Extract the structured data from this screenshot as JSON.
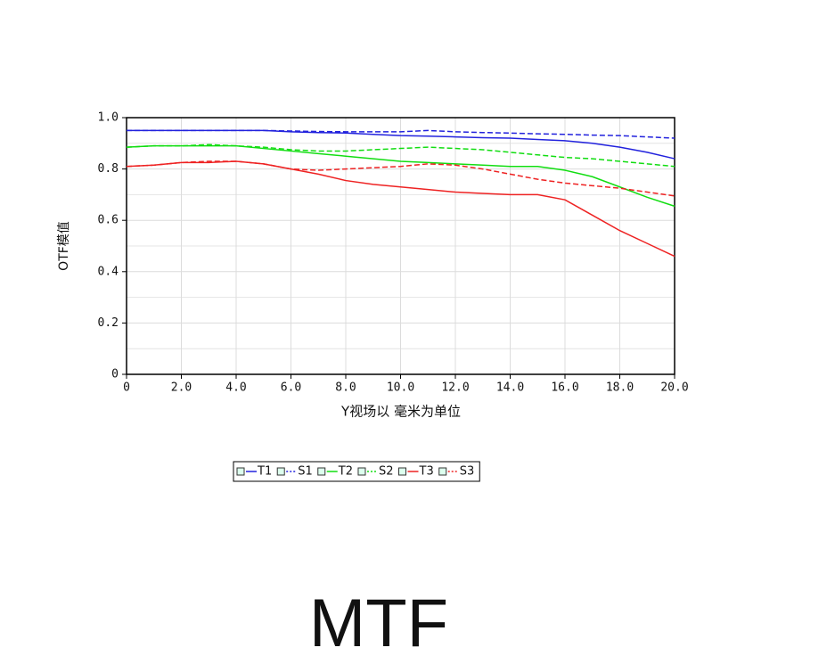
{
  "chart_data": {
    "type": "line",
    "title": "MTF",
    "x_label": "Y视场以  毫米为单位",
    "y_label": "OTF模值",
    "x": [
      0,
      1,
      2,
      3,
      4,
      5,
      6,
      7,
      8,
      9,
      10,
      11,
      12,
      13,
      14,
      15,
      16,
      17,
      18,
      19,
      20
    ],
    "series": [
      {
        "name": "T1",
        "color": "#2222dd",
        "style": "solid",
        "values": [
          0.95,
          0.95,
          0.95,
          0.95,
          0.95,
          0.95,
          0.945,
          0.942,
          0.94,
          0.935,
          0.93,
          0.928,
          0.925,
          0.922,
          0.92,
          0.915,
          0.91,
          0.9,
          0.885,
          0.865,
          0.84
        ]
      },
      {
        "name": "S1",
        "color": "#2222dd",
        "style": "dashed",
        "values": [
          0.95,
          0.95,
          0.95,
          0.95,
          0.95,
          0.95,
          0.948,
          0.946,
          0.945,
          0.945,
          0.945,
          0.95,
          0.945,
          0.942,
          0.94,
          0.937,
          0.935,
          0.932,
          0.93,
          0.925,
          0.92
        ]
      },
      {
        "name": "T2",
        "color": "#11dd11",
        "style": "solid",
        "values": [
          0.885,
          0.89,
          0.89,
          0.89,
          0.89,
          0.88,
          0.87,
          0.86,
          0.85,
          0.84,
          0.83,
          0.825,
          0.82,
          0.815,
          0.81,
          0.81,
          0.795,
          0.77,
          0.73,
          0.69,
          0.655
        ]
      },
      {
        "name": "S2",
        "color": "#11dd11",
        "style": "dashed",
        "values": [
          0.885,
          0.89,
          0.89,
          0.895,
          0.89,
          0.885,
          0.875,
          0.87,
          0.87,
          0.875,
          0.88,
          0.885,
          0.88,
          0.875,
          0.865,
          0.855,
          0.845,
          0.84,
          0.83,
          0.82,
          0.81
        ]
      },
      {
        "name": "T3",
        "color": "#ee2222",
        "style": "solid",
        "values": [
          0.81,
          0.815,
          0.825,
          0.825,
          0.83,
          0.82,
          0.8,
          0.78,
          0.755,
          0.74,
          0.73,
          0.72,
          0.71,
          0.705,
          0.7,
          0.7,
          0.68,
          0.62,
          0.56,
          0.51,
          0.46
        ]
      },
      {
        "name": "S3",
        "color": "#ee2222",
        "style": "dashed",
        "values": [
          0.81,
          0.815,
          0.825,
          0.83,
          0.83,
          0.82,
          0.8,
          0.795,
          0.8,
          0.805,
          0.81,
          0.82,
          0.815,
          0.8,
          0.78,
          0.76,
          0.745,
          0.735,
          0.725,
          0.71,
          0.695
        ]
      }
    ],
    "xlim": [
      0,
      20
    ],
    "xticks": [
      0,
      {
        "value": 2,
        "label": "2.0"
      },
      {
        "value": 4,
        "label": "4.0"
      },
      {
        "value": 6,
        "label": "6.0"
      },
      {
        "value": 8,
        "label": "8.0"
      },
      {
        "value": 10,
        "label": "10.0"
      },
      {
        "value": 12,
        "label": "12.0"
      },
      {
        "value": 14,
        "label": "14.0"
      },
      {
        "value": 16,
        "label": "16.0"
      },
      {
        "value": 18,
        "label": "18.0"
      },
      {
        "value": 20,
        "label": "20.0"
      }
    ],
    "ylim": [
      0,
      1
    ],
    "yticks": [
      0,
      0.2,
      0.4,
      0.6,
      0.8,
      {
        "value": 1,
        "label": "1.0"
      }
    ],
    "minor_yticks": [
      0.1,
      0.3,
      0.5,
      0.7,
      0.9
    ],
    "grid": true
  }
}
